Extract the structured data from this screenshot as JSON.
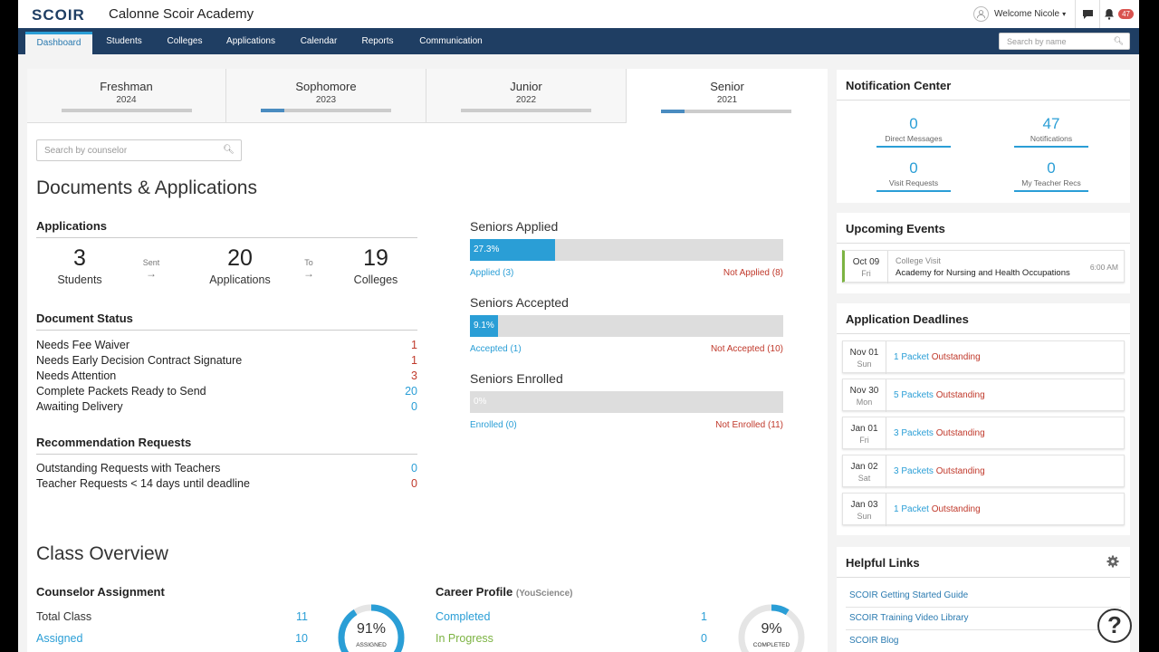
{
  "header": {
    "logo": "SCOIR",
    "school": "Calonne Scoir Academy",
    "welcome": "Welcome Nicole",
    "notif_badge": "47"
  },
  "nav": {
    "tabs": [
      "Dashboard",
      "Students",
      "Colleges",
      "Applications",
      "Calendar",
      "Reports",
      "Communication"
    ],
    "search_placeholder": "Search by name"
  },
  "class_tabs": [
    {
      "name": "Freshman",
      "year": "2024",
      "progress": 0
    },
    {
      "name": "Sophomore",
      "year": "2023",
      "progress": 0.18
    },
    {
      "name": "Junior",
      "year": "2022",
      "progress": 0
    },
    {
      "name": "Senior",
      "year": "2021",
      "progress": 0.18
    }
  ],
  "counselor_search_placeholder": "Search by counselor",
  "docs": {
    "title": "Documents & Applications",
    "applications_heading": "Applications",
    "students_num": "3",
    "students_lbl": "Students",
    "sent_lbl": "Sent",
    "applications_num": "20",
    "applications_lbl": "Applications",
    "to_lbl": "To",
    "colleges_num": "19",
    "colleges_lbl": "Colleges",
    "doc_status_heading": "Document Status",
    "doc_status": [
      {
        "label": "Needs Fee Waiver",
        "value": "1"
      },
      {
        "label": "Needs Early Decision Contract Signature",
        "value": "1"
      },
      {
        "label": "Needs Attention",
        "value": "3"
      },
      {
        "label": "Complete Packets Ready to Send",
        "value": "20"
      },
      {
        "label": "Awaiting Delivery",
        "value": "0"
      }
    ],
    "rec_heading": "Recommendation Requests",
    "rec": [
      {
        "label": "Outstanding Requests with Teachers",
        "value": "0"
      },
      {
        "label": "Teacher Requests < 14 days until deadline",
        "value": "0"
      }
    ]
  },
  "seniors": {
    "applied": {
      "title": "Seniors Applied",
      "percent": "27.3%",
      "fraction": 0.273,
      "yes": "Applied (3)",
      "no": "Not Applied (8)"
    },
    "accepted": {
      "title": "Seniors Accepted",
      "percent": "9.1%",
      "fraction": 0.091,
      "yes": "Accepted (1)",
      "no": "Not Accepted (10)"
    },
    "enrolled": {
      "title": "Seniors Enrolled",
      "percent": "0%",
      "fraction": 0,
      "yes": "Enrolled (0)",
      "no": "Not Enrolled (11)"
    }
  },
  "class_overview": {
    "title": "Class Overview",
    "counselor_heading": "Counselor Assignment",
    "total_class_lbl": "Total Class",
    "total_class_val": "11",
    "assigned_lbl": "Assigned",
    "assigned_val": "10",
    "assigned_pct": "91%",
    "assigned_pct_value": 0.91,
    "assigned_caption": "ASSIGNED",
    "career_heading": "Career Profile",
    "career_sub": "(YouScience)",
    "completed_lbl": "Completed",
    "completed_val": "1",
    "progress_lbl": "In Progress",
    "progress_val": "0",
    "completed_pct": "9%",
    "completed_pct_value": 0.09,
    "completed_caption": "COMPLETED"
  },
  "notification_center": {
    "title": "Notification Center",
    "items": [
      {
        "value": "0",
        "label": "Direct Messages"
      },
      {
        "value": "47",
        "label": "Notifications"
      },
      {
        "value": "0",
        "label": "Visit Requests"
      },
      {
        "value": "0",
        "label": "My Teacher Recs"
      }
    ]
  },
  "events": {
    "title": "Upcoming Events",
    "items": [
      {
        "date": "Oct 09",
        "day": "Fri",
        "type": "College Visit",
        "name": "Academy for Nursing and Health Occupations",
        "time": "6:00 AM"
      }
    ]
  },
  "deadlines": {
    "title": "Application Deadlines",
    "outstanding_word": "Outstanding",
    "items": [
      {
        "date": "Nov 01",
        "day": "Sun",
        "packets": "1 Packet"
      },
      {
        "date": "Nov 30",
        "day": "Mon",
        "packets": "5 Packets"
      },
      {
        "date": "Jan 01",
        "day": "Fri",
        "packets": "3 Packets"
      },
      {
        "date": "Jan 02",
        "day": "Sat",
        "packets": "3 Packets"
      },
      {
        "date": "Jan 03",
        "day": "Sun",
        "packets": "1 Packet"
      }
    ]
  },
  "helpful_links": {
    "title": "Helpful Links",
    "items": [
      "SCOIR Getting Started Guide",
      "SCOIR Training Video Library",
      "SCOIR Blog"
    ]
  },
  "colors": {
    "navy": "#1f3e63",
    "accent": "#2a9ed6",
    "red": "#c0392b",
    "green": "#7cb342"
  }
}
